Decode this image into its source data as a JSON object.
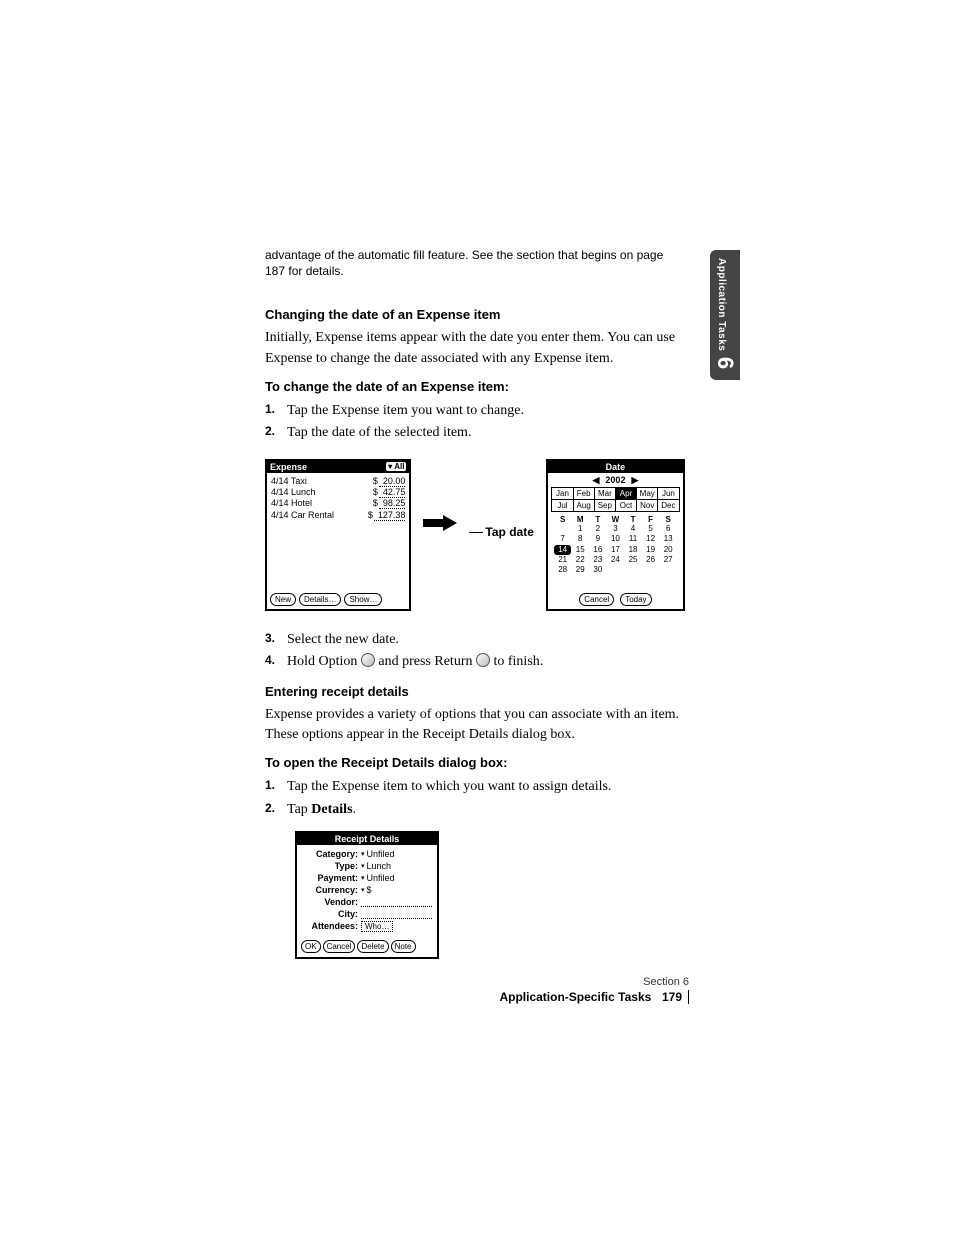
{
  "intro": "advantage of the automatic fill feature. See the section that begins on page 187 for details.",
  "h1": "Changing the date of an Expense item",
  "p1": "Initially, Expense items appear with the date you enter them. You can use Expense to change the date associated with any Expense item.",
  "h2": "To change the date of an Expense item:",
  "steps1": {
    "s1": "Tap the Expense item you want to change.",
    "s2": "Tap the date of the selected item."
  },
  "expense": {
    "title": "Expense",
    "filter": "▾ All",
    "rows": [
      {
        "d": "4/14",
        "n": "Taxi",
        "a": "20.00"
      },
      {
        "d": "4/14",
        "n": "Lunch",
        "a": "42.75"
      },
      {
        "d": "4/14",
        "n": "Hotel",
        "a": "98.25"
      },
      {
        "d": "4/14",
        "n": "Car Rental",
        "a": "127.38"
      }
    ],
    "btn_new": "New",
    "btn_details": "Details…",
    "btn_show": "Show…"
  },
  "tapdate": "Tap date",
  "datepicker": {
    "title": "Date",
    "year": "2002",
    "months": [
      "Jan",
      "Feb",
      "Mar",
      "Apr",
      "May",
      "Jun",
      "Jul",
      "Aug",
      "Sep",
      "Oct",
      "Nov",
      "Dec"
    ],
    "sel_month": 3,
    "dow": [
      "S",
      "M",
      "T",
      "W",
      "T",
      "F",
      "S"
    ],
    "weeks": [
      [
        "",
        "1",
        "2",
        "3",
        "4",
        "5",
        "6"
      ],
      [
        "7",
        "8",
        "9",
        "10",
        "11",
        "12",
        "13"
      ],
      [
        "14",
        "15",
        "16",
        "17",
        "18",
        "19",
        "20"
      ],
      [
        "21",
        "22",
        "23",
        "24",
        "25",
        "26",
        "27"
      ],
      [
        "28",
        "29",
        "30",
        "",
        "",
        "",
        ""
      ]
    ],
    "sel_day": "14",
    "btn_cancel": "Cancel",
    "btn_today": "Today"
  },
  "steps2": {
    "s3": "Select the new date.",
    "s4a": "Hold Option ",
    "s4b": " and press Return ",
    "s4c": " to finish."
  },
  "h3": "Entering receipt details",
  "p2": "Expense provides a variety of options that you can associate with an item. These options appear in the Receipt Details dialog box.",
  "h4": "To open the Receipt Details dialog box:",
  "steps3": {
    "s1": "Tap the Expense item to which you want to assign details.",
    "s2a": "Tap ",
    "s2b": "Details",
    "s2c": "."
  },
  "receipt": {
    "title": "Receipt Details",
    "cat_l": "Category:",
    "cat_v": "Unfiled",
    "type_l": "Type:",
    "type_v": "Lunch",
    "pay_l": "Payment:",
    "pay_v": "Unfiled",
    "cur_l": "Currency:",
    "cur_v": "$",
    "ven_l": "Vendor:",
    "city_l": "City:",
    "att_l": "Attendees:",
    "att_v": "Who…",
    "ok": "OK",
    "cancel": "Cancel",
    "delete": "Delete",
    "note": "Note"
  },
  "sidetab": {
    "label": "Application\nTasks",
    "num": "6"
  },
  "footer": {
    "section": "Section 6",
    "title": "Application-Specific Tasks",
    "page": "179"
  }
}
